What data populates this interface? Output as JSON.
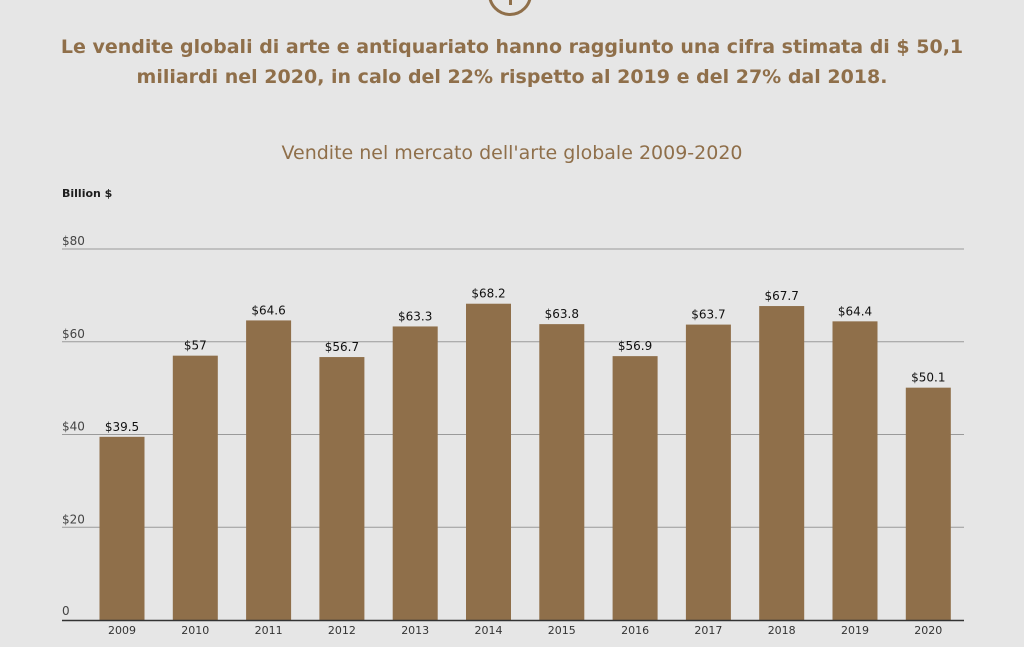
{
  "headline": {
    "line1": "Le vendite globali di arte e antiquariato hanno raggiunto una cifra stimata di $ 50,1",
    "line2": "miliardi nel 2020, in calo del 22% rispetto al 2019 e del 27% dal 2018."
  },
  "colors": {
    "accent": "#8f6f4a",
    "bar": "#8f6f4a",
    "background": "#e6e6e6",
    "gridline": "#9a9a9a"
  },
  "icons": {
    "top": "info-icon"
  },
  "chart_data": {
    "type": "bar",
    "title": "Vendite nel mercato dell'arte globale 2009-2020",
    "ylabel": "Billion $",
    "xlabel": "",
    "categories": [
      "2009",
      "2010",
      "2011",
      "2012",
      "2013",
      "2014",
      "2015",
      "2016",
      "2017",
      "2018",
      "2019",
      "2020"
    ],
    "values": [
      39.5,
      57,
      64.6,
      56.7,
      63.3,
      68.2,
      63.8,
      56.9,
      63.7,
      67.7,
      64.4,
      50.1
    ],
    "value_labels": [
      "$39.5",
      "$57",
      "$64.6",
      "$56.7",
      "$63.3",
      "$68.2",
      "$63.8",
      "$56.9",
      "$63.7",
      "$67.7",
      "$64.4",
      "$50.1"
    ],
    "ylim": [
      0,
      80
    ],
    "yticks": [
      0,
      20,
      40,
      60,
      80
    ],
    "ytick_labels": [
      "0",
      "$20",
      "$40",
      "$60",
      "$80"
    ],
    "grid": true,
    "legend": "none"
  }
}
